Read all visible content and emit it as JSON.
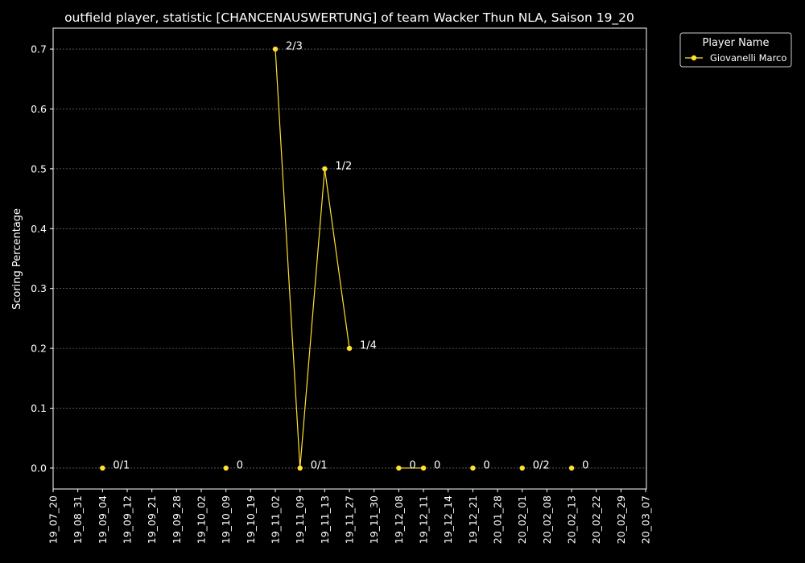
{
  "chart_data": {
    "type": "line",
    "title": "outfield player, statistic [CHANCENAUSWERTUNG] of team Wacker Thun NLA, Saison 19_20",
    "xlabel": "",
    "ylabel": "Scoring Percentage",
    "x_tick_labels": [
      "19_07_20",
      "19_08_31",
      "19_09_04",
      "19_09_12",
      "19_09_21",
      "19_09_28",
      "19_10_02",
      "19_10_09",
      "19_10_19",
      "19_11_02",
      "19_11_09",
      "19_11_13",
      "19_11_27",
      "19_11_30",
      "19_12_08",
      "19_12_11",
      "19_12_14",
      "19_12_21",
      "20_01_28",
      "20_02_01",
      "20_02_08",
      "20_02_13",
      "20_02_22",
      "20_02_29",
      "20_03_07"
    ],
    "y_ticks": [
      "0.0",
      "0.1",
      "0.2",
      "0.3",
      "0.4",
      "0.5",
      "0.6",
      "0.7"
    ],
    "ylim": [
      -0.035,
      0.735
    ],
    "grid": "horizontal dashed",
    "legend": {
      "title": "Player Name",
      "placement": "top-right outside"
    },
    "series": [
      {
        "name": "Giovanelli Marco",
        "color": "#ffe033",
        "points": [
          {
            "x": "19_09_04",
            "y": 0.0,
            "label": "0/1"
          },
          {
            "x": "19_10_09",
            "y": 0.0,
            "label": "0"
          },
          {
            "x": "19_11_02",
            "y": 0.7,
            "label": "2/3"
          },
          {
            "x": "19_11_09",
            "y": 0.0,
            "label": "0/1"
          },
          {
            "x": "19_11_13",
            "y": 0.5,
            "label": "1/2"
          },
          {
            "x": "19_11_27",
            "y": 0.2,
            "label": "1/4"
          },
          {
            "x": "19_12_08",
            "y": 0.0,
            "label": "0"
          },
          {
            "x": "19_12_11",
            "y": 0.0,
            "label": "0"
          },
          {
            "x": "19_12_21",
            "y": 0.0,
            "label": "0"
          },
          {
            "x": "20_02_01",
            "y": 0.0,
            "label": "0/2"
          },
          {
            "x": "20_02_13",
            "y": 0.0,
            "label": "0"
          }
        ],
        "line_segments": [
          [
            "19_11_02",
            "19_11_09",
            "19_11_13",
            "19_11_27"
          ],
          [
            "19_12_08",
            "19_12_11"
          ]
        ]
      }
    ]
  }
}
